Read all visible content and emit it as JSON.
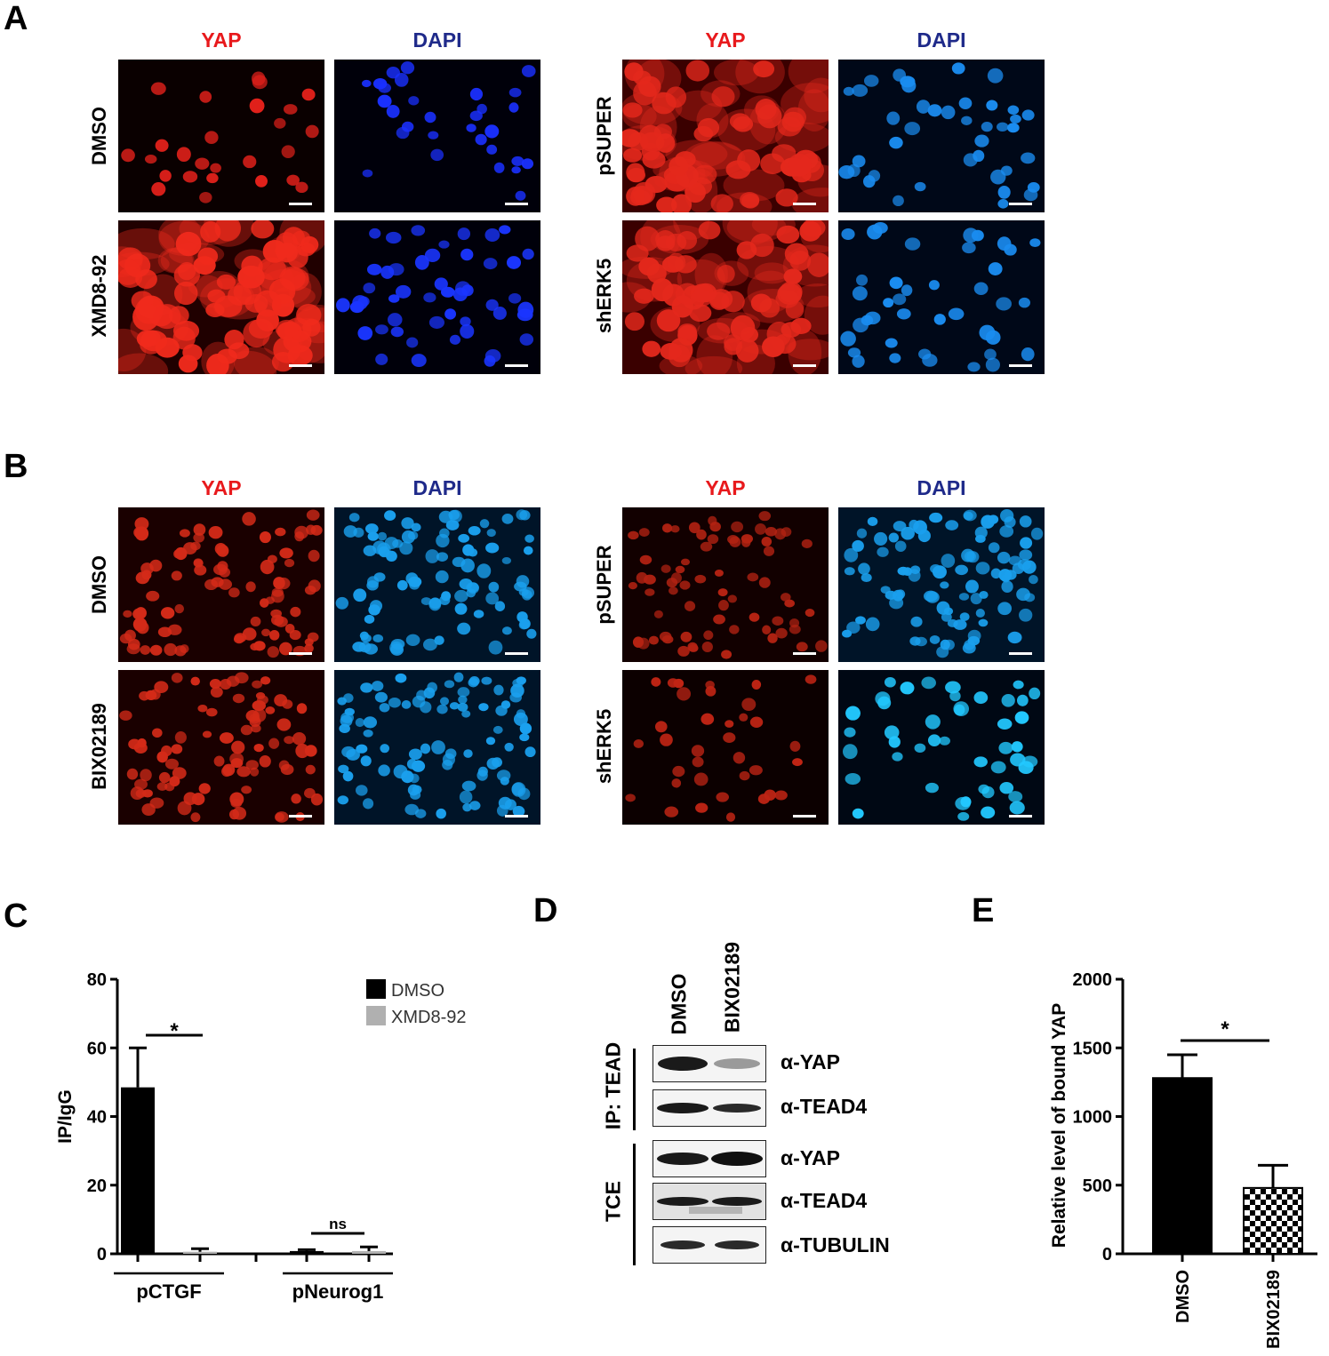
{
  "panels": {
    "A": {
      "letter": "A",
      "left": {
        "col_labels": [
          "YAP",
          "DAPI"
        ],
        "row_labels": [
          "DMSO",
          "XMD8-92"
        ]
      },
      "right": {
        "col_labels": [
          "YAP",
          "DAPI"
        ],
        "row_labels": [
          "pSUPER",
          "shERK5"
        ]
      }
    },
    "B": {
      "letter": "B",
      "left": {
        "col_labels": [
          "YAP",
          "DAPI"
        ],
        "row_labels": [
          "DMSO",
          "BIX02189"
        ]
      },
      "right": {
        "col_labels": [
          "YAP",
          "DAPI"
        ],
        "row_labels": [
          "pSUPER",
          "shERK5"
        ]
      }
    },
    "C": {
      "letter": "C"
    },
    "D": {
      "letter": "D",
      "lanes": [
        "DMSO",
        "BIX02189"
      ],
      "groups": [
        "IP: TEAD",
        "TCE"
      ],
      "blots": [
        "α-YAP",
        "α-TEAD4",
        "α-YAP",
        "α-TEAD4",
        "α-TUBULIN"
      ]
    },
    "E": {
      "letter": "E"
    }
  },
  "colors": {
    "yap_label": "#e8191c",
    "dapi_label": "#1f2a8a"
  },
  "chart_data": [
    {
      "panel": "C",
      "type": "bar",
      "categories": [
        "pCTGF",
        "pNeurog1"
      ],
      "series": [
        {
          "name": "DMSO",
          "values": [
            48.5,
            0.8
          ],
          "errors": [
            11.5,
            0.4
          ],
          "color": "#000000"
        },
        {
          "name": "XMD8-92",
          "values": [
            0.6,
            0.8
          ],
          "errors": [
            0.9,
            1.2
          ],
          "color": "#b0b0b0"
        }
      ],
      "ylabel": "IP/IgG",
      "ylim": [
        0,
        80
      ],
      "yticks": [
        "0",
        "20",
        "40",
        "60",
        "80"
      ],
      "annotations": [
        "*",
        "ns"
      ],
      "legend": "top-right"
    },
    {
      "panel": "E",
      "type": "bar",
      "categories": [
        "DMSO",
        "BIX02189"
      ],
      "values": [
        1280,
        480
      ],
      "errors": [
        170,
        165
      ],
      "ylabel": "Relative level of bound YAP",
      "ylim": [
        0,
        2000
      ],
      "yticks": [
        "0",
        "500",
        "1000",
        "1500",
        "2000"
      ],
      "annotations": [
        "*"
      ]
    }
  ]
}
